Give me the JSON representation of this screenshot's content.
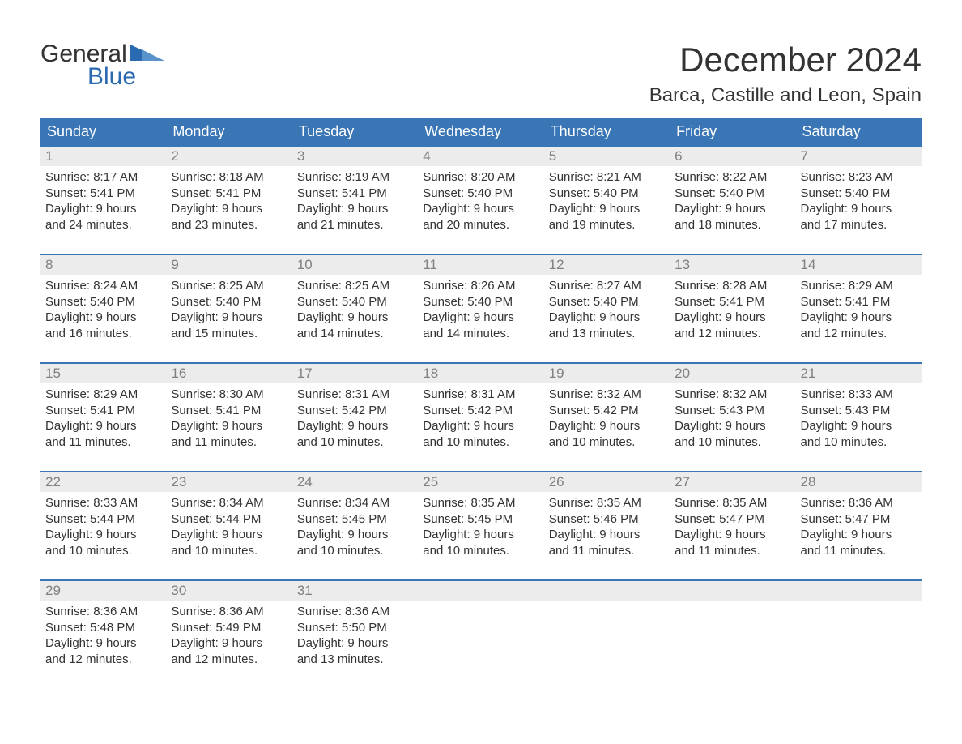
{
  "logo": {
    "text_black": "General",
    "text_blue": "Blue",
    "tri_color": "#2a6ab0"
  },
  "title": "December 2024",
  "location": "Barca, Castille and Leon, Spain",
  "colors": {
    "header_bg": "#3a76b5",
    "header_text": "#ffffff",
    "row_border": "#3a76b5",
    "daynum_bg": "#ececec",
    "daynum_text": "#808080",
    "body_text": "#333333",
    "background": "#ffffff"
  },
  "typography": {
    "title_fontsize": 42,
    "location_fontsize": 24,
    "dayheader_fontsize": 18,
    "daynum_fontsize": 17,
    "body_fontsize": 15,
    "logo_fontsize": 30
  },
  "day_headers": [
    "Sunday",
    "Monday",
    "Tuesday",
    "Wednesday",
    "Thursday",
    "Friday",
    "Saturday"
  ],
  "weeks": [
    [
      {
        "n": "1",
        "sunrise": "Sunrise: 8:17 AM",
        "sunset": "Sunset: 5:41 PM",
        "d1": "Daylight: 9 hours",
        "d2": "and 24 minutes."
      },
      {
        "n": "2",
        "sunrise": "Sunrise: 8:18 AM",
        "sunset": "Sunset: 5:41 PM",
        "d1": "Daylight: 9 hours",
        "d2": "and 23 minutes."
      },
      {
        "n": "3",
        "sunrise": "Sunrise: 8:19 AM",
        "sunset": "Sunset: 5:41 PM",
        "d1": "Daylight: 9 hours",
        "d2": "and 21 minutes."
      },
      {
        "n": "4",
        "sunrise": "Sunrise: 8:20 AM",
        "sunset": "Sunset: 5:40 PM",
        "d1": "Daylight: 9 hours",
        "d2": "and 20 minutes."
      },
      {
        "n": "5",
        "sunrise": "Sunrise: 8:21 AM",
        "sunset": "Sunset: 5:40 PM",
        "d1": "Daylight: 9 hours",
        "d2": "and 19 minutes."
      },
      {
        "n": "6",
        "sunrise": "Sunrise: 8:22 AM",
        "sunset": "Sunset: 5:40 PM",
        "d1": "Daylight: 9 hours",
        "d2": "and 18 minutes."
      },
      {
        "n": "7",
        "sunrise": "Sunrise: 8:23 AM",
        "sunset": "Sunset: 5:40 PM",
        "d1": "Daylight: 9 hours",
        "d2": "and 17 minutes."
      }
    ],
    [
      {
        "n": "8",
        "sunrise": "Sunrise: 8:24 AM",
        "sunset": "Sunset: 5:40 PM",
        "d1": "Daylight: 9 hours",
        "d2": "and 16 minutes."
      },
      {
        "n": "9",
        "sunrise": "Sunrise: 8:25 AM",
        "sunset": "Sunset: 5:40 PM",
        "d1": "Daylight: 9 hours",
        "d2": "and 15 minutes."
      },
      {
        "n": "10",
        "sunrise": "Sunrise: 8:25 AM",
        "sunset": "Sunset: 5:40 PM",
        "d1": "Daylight: 9 hours",
        "d2": "and 14 minutes."
      },
      {
        "n": "11",
        "sunrise": "Sunrise: 8:26 AM",
        "sunset": "Sunset: 5:40 PM",
        "d1": "Daylight: 9 hours",
        "d2": "and 14 minutes."
      },
      {
        "n": "12",
        "sunrise": "Sunrise: 8:27 AM",
        "sunset": "Sunset: 5:40 PM",
        "d1": "Daylight: 9 hours",
        "d2": "and 13 minutes."
      },
      {
        "n": "13",
        "sunrise": "Sunrise: 8:28 AM",
        "sunset": "Sunset: 5:41 PM",
        "d1": "Daylight: 9 hours",
        "d2": "and 12 minutes."
      },
      {
        "n": "14",
        "sunrise": "Sunrise: 8:29 AM",
        "sunset": "Sunset: 5:41 PM",
        "d1": "Daylight: 9 hours",
        "d2": "and 12 minutes."
      }
    ],
    [
      {
        "n": "15",
        "sunrise": "Sunrise: 8:29 AM",
        "sunset": "Sunset: 5:41 PM",
        "d1": "Daylight: 9 hours",
        "d2": "and 11 minutes."
      },
      {
        "n": "16",
        "sunrise": "Sunrise: 8:30 AM",
        "sunset": "Sunset: 5:41 PM",
        "d1": "Daylight: 9 hours",
        "d2": "and 11 minutes."
      },
      {
        "n": "17",
        "sunrise": "Sunrise: 8:31 AM",
        "sunset": "Sunset: 5:42 PM",
        "d1": "Daylight: 9 hours",
        "d2": "and 10 minutes."
      },
      {
        "n": "18",
        "sunrise": "Sunrise: 8:31 AM",
        "sunset": "Sunset: 5:42 PM",
        "d1": "Daylight: 9 hours",
        "d2": "and 10 minutes."
      },
      {
        "n": "19",
        "sunrise": "Sunrise: 8:32 AM",
        "sunset": "Sunset: 5:42 PM",
        "d1": "Daylight: 9 hours",
        "d2": "and 10 minutes."
      },
      {
        "n": "20",
        "sunrise": "Sunrise: 8:32 AM",
        "sunset": "Sunset: 5:43 PM",
        "d1": "Daylight: 9 hours",
        "d2": "and 10 minutes."
      },
      {
        "n": "21",
        "sunrise": "Sunrise: 8:33 AM",
        "sunset": "Sunset: 5:43 PM",
        "d1": "Daylight: 9 hours",
        "d2": "and 10 minutes."
      }
    ],
    [
      {
        "n": "22",
        "sunrise": "Sunrise: 8:33 AM",
        "sunset": "Sunset: 5:44 PM",
        "d1": "Daylight: 9 hours",
        "d2": "and 10 minutes."
      },
      {
        "n": "23",
        "sunrise": "Sunrise: 8:34 AM",
        "sunset": "Sunset: 5:44 PM",
        "d1": "Daylight: 9 hours",
        "d2": "and 10 minutes."
      },
      {
        "n": "24",
        "sunrise": "Sunrise: 8:34 AM",
        "sunset": "Sunset: 5:45 PM",
        "d1": "Daylight: 9 hours",
        "d2": "and 10 minutes."
      },
      {
        "n": "25",
        "sunrise": "Sunrise: 8:35 AM",
        "sunset": "Sunset: 5:45 PM",
        "d1": "Daylight: 9 hours",
        "d2": "and 10 minutes."
      },
      {
        "n": "26",
        "sunrise": "Sunrise: 8:35 AM",
        "sunset": "Sunset: 5:46 PM",
        "d1": "Daylight: 9 hours",
        "d2": "and 11 minutes."
      },
      {
        "n": "27",
        "sunrise": "Sunrise: 8:35 AM",
        "sunset": "Sunset: 5:47 PM",
        "d1": "Daylight: 9 hours",
        "d2": "and 11 minutes."
      },
      {
        "n": "28",
        "sunrise": "Sunrise: 8:36 AM",
        "sunset": "Sunset: 5:47 PM",
        "d1": "Daylight: 9 hours",
        "d2": "and 11 minutes."
      }
    ],
    [
      {
        "n": "29",
        "sunrise": "Sunrise: 8:36 AM",
        "sunset": "Sunset: 5:48 PM",
        "d1": "Daylight: 9 hours",
        "d2": "and 12 minutes."
      },
      {
        "n": "30",
        "sunrise": "Sunrise: 8:36 AM",
        "sunset": "Sunset: 5:49 PM",
        "d1": "Daylight: 9 hours",
        "d2": "and 12 minutes."
      },
      {
        "n": "31",
        "sunrise": "Sunrise: 8:36 AM",
        "sunset": "Sunset: 5:50 PM",
        "d1": "Daylight: 9 hours",
        "d2": "and 13 minutes."
      },
      null,
      null,
      null,
      null
    ]
  ]
}
